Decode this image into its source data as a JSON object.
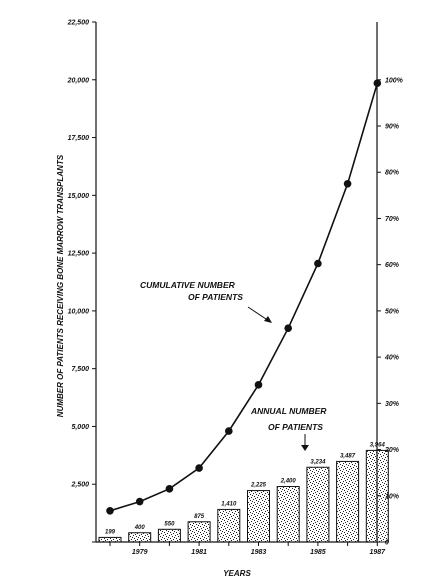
{
  "chart_data": {
    "type": "bar+line",
    "years": [
      1978,
      1979,
      1980,
      1981,
      1982,
      1983,
      1984,
      1985,
      1986,
      1987
    ],
    "x_tick_labels": [
      {
        "year": 1979,
        "label": "1979"
      },
      {
        "year": 1981,
        "label": "1981"
      },
      {
        "year": 1983,
        "label": "1983"
      },
      {
        "year": 1985,
        "label": "1985"
      },
      {
        "year": 1987,
        "label": "1987"
      }
    ],
    "annual": {
      "values": [
        199,
        400,
        550,
        875,
        1410,
        2225,
        2400,
        3234,
        3487,
        3964
      ],
      "labels": [
        "199",
        "400",
        "550",
        "875",
        "1,410",
        "2,225",
        "2,400",
        "3,234",
        "3,487",
        "3,964"
      ]
    },
    "cumulative": {
      "values": [
        1350,
        1750,
        2300,
        3200,
        4800,
        6800,
        9250,
        12050,
        15500,
        19850
      ]
    },
    "y_left": {
      "min": 0,
      "max": 22500,
      "ticks": [
        0,
        2500,
        5000,
        7500,
        10000,
        12500,
        15000,
        17500,
        20000,
        22500
      ],
      "tick_labels": [
        "",
        "2,500",
        "5,000",
        "7,500",
        "10,000",
        "12,500",
        "15,000",
        "17,500",
        "20,000",
        "22,500"
      ],
      "title": "NUMBER OF PATIENTS RECEIVING BONE  MARROW TRANSPLANTS"
    },
    "y_right": {
      "max_value": 20000,
      "ticks": [
        0,
        10,
        20,
        30,
        40,
        50,
        60,
        70,
        80,
        90,
        100
      ],
      "tick_labels": [
        "0",
        "10%",
        "20%",
        "30%",
        "40%",
        "50%",
        "60%",
        "70%",
        "80%",
        "90%",
        "100%"
      ]
    },
    "xlabel": "YEARS",
    "annotations": {
      "cumulative": [
        "CUMULATIVE NUMBER",
        "OF PATIENTS"
      ],
      "annual": [
        "ANNUAL NUMBER",
        "OF PATIENTS"
      ]
    },
    "grid": false
  }
}
